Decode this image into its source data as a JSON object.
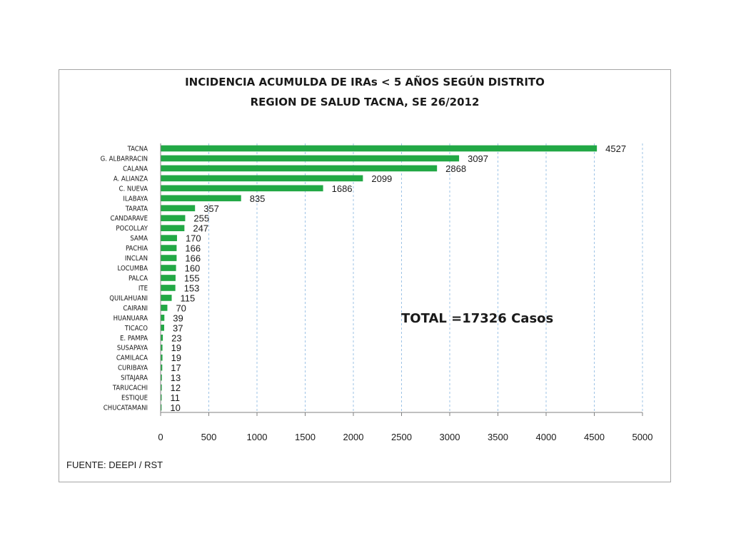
{
  "chart_data": {
    "type": "bar",
    "orientation": "horizontal",
    "title": "INCIDENCIA ACUMULDA DE IRAs < 5 AÑOS SEGÚN DISTRITO",
    "subtitle": "REGION DE SALUD TACNA, SE 26/2012",
    "categories": [
      "TACNA",
      "G. ALBARRACIN",
      "CALANA",
      "A. ALIANZA",
      "C. NUEVA",
      "ILABAYA",
      "TARATA",
      "CANDARAVE",
      "POCOLLAY",
      "SAMA",
      "PACHIA",
      "INCLAN",
      "LOCUMBA",
      "PALCA",
      "ITE",
      "QUILAHUANI",
      "CAIRANI",
      "HUANUARA",
      "TICACO",
      "E. PAMPA",
      "SUSAPAYA",
      "CAMILACA",
      "CURIBAYA",
      "SITAJARA",
      "TARUCACHI",
      "ESTIQUE",
      "CHUCATAMANI"
    ],
    "values": [
      4527,
      3097,
      2868,
      2099,
      1686,
      835,
      357,
      255,
      247,
      170,
      166,
      166,
      160,
      155,
      153,
      115,
      70,
      39,
      37,
      23,
      19,
      19,
      17,
      13,
      12,
      11,
      10
    ],
    "xlim": [
      0,
      5000
    ],
    "xticks": [
      "0",
      "500",
      "1000",
      "1500",
      "2000",
      "2500",
      "3000",
      "3500",
      "4000",
      "4500",
      "5000"
    ],
    "grid": "vertical dashed",
    "bar_color": "#22a845",
    "annotation": "TOTAL =17326 Casos",
    "source": "FUENTE: DEEPI  / RST"
  }
}
